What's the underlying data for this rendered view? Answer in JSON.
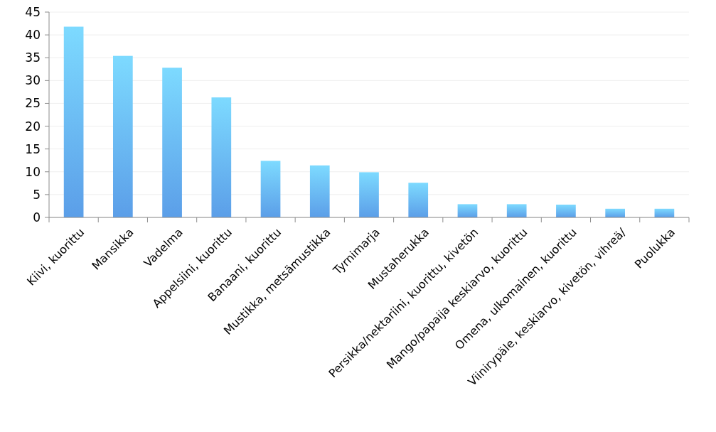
{
  "chart_data": {
    "type": "bar",
    "categories": [
      "Kiivi, kuorittu",
      "Mansikka",
      "Vadelma",
      "Appelsiini, kuorittu",
      "Banaani, kuorittu",
      "Mustikka, metsämustikka",
      "Tyrnimarja",
      "Mustaherukka",
      "Persikka/nektariini, kuorittu, kivetön",
      "Mango/papaija keskiarvo, kuorittu",
      "Omena, ulkomainen, kuorittu",
      "Viinirypäle, keskiarvo, kivetön, vihreä/",
      "Puolukka"
    ],
    "values": [
      41.8,
      35.4,
      32.8,
      26.3,
      12.4,
      11.4,
      9.9,
      7.6,
      2.9,
      2.9,
      2.8,
      1.9,
      1.9
    ],
    "color": "#5b9ee8",
    "ylim": [
      0,
      45
    ],
    "yticks": [
      0,
      5,
      10,
      15,
      20,
      25,
      30,
      35,
      40,
      45
    ],
    "grid": "y"
  }
}
